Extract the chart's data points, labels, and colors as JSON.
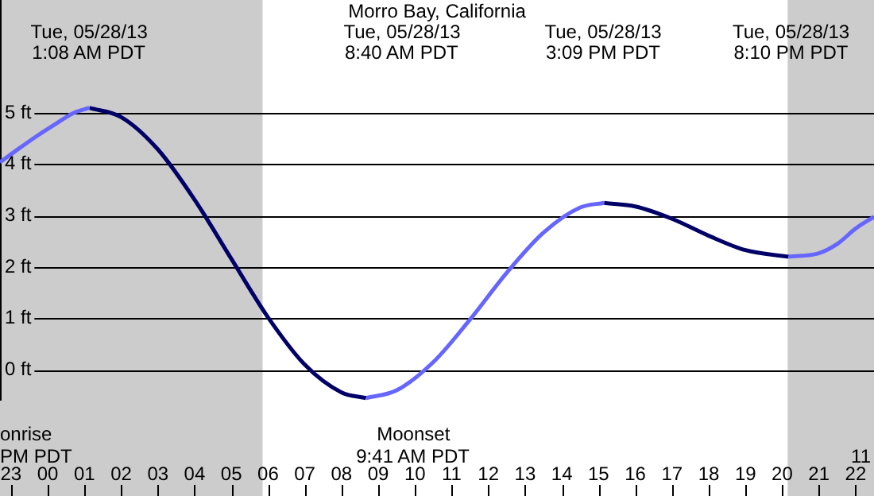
{
  "chart_data": {
    "type": "line",
    "title": "Morro Bay, California",
    "xlim": [
      "--05-27T22:42",
      "--05-28T22:30"
    ],
    "ylim": [
      -0.6,
      7.2
    ],
    "xticks": [
      {
        "value": "--05-27T23:00",
        "label": "23"
      },
      {
        "value": "--05-28T00:00",
        "label": "00"
      },
      {
        "value": "--05-28T01:00",
        "label": "01"
      },
      {
        "value": "--05-28T02:00",
        "label": "02"
      },
      {
        "value": "--05-28T03:00",
        "label": "03"
      },
      {
        "value": "--05-28T04:00",
        "label": "04"
      },
      {
        "value": "--05-28T05:00",
        "label": "05"
      },
      {
        "value": "--05-28T06:00",
        "label": "06"
      },
      {
        "value": "--05-28T07:00",
        "label": "07"
      },
      {
        "value": "--05-28T08:00",
        "label": "08"
      },
      {
        "value": "--05-28T09:00",
        "label": "09"
      },
      {
        "value": "--05-28T10:00",
        "label": "10"
      },
      {
        "value": "--05-28T11:00",
        "label": "11"
      },
      {
        "value": "--05-28T12:00",
        "label": "12"
      },
      {
        "value": "--05-28T13:00",
        "label": "13"
      },
      {
        "value": "--05-28T14:00",
        "label": "14"
      },
      {
        "value": "--05-28T15:00",
        "label": "15"
      },
      {
        "value": "--05-28T16:00",
        "label": "16"
      },
      {
        "value": "--05-28T17:00",
        "label": "17"
      },
      {
        "value": "--05-28T18:00",
        "label": "18"
      },
      {
        "value": "--05-28T19:00",
        "label": "19"
      },
      {
        "value": "--05-28T20:00",
        "label": "20"
      },
      {
        "value": "--05-28T21:00",
        "label": "21"
      },
      {
        "value": "--05-28T22:00",
        "label": "22"
      }
    ],
    "yticks": [
      {
        "value": 0,
        "label": "0 ft"
      },
      {
        "value": 1,
        "label": "1 ft"
      },
      {
        "value": 2,
        "label": "2 ft"
      },
      {
        "value": 3,
        "label": "3 ft"
      },
      {
        "value": 4,
        "label": "4 ft"
      },
      {
        "value": 5,
        "label": "5 ft"
      }
    ],
    "grid": "y",
    "legend": false,
    "marker": "none",
    "series": [
      {
        "color": "#6666ff",
        "x": [
          "--05-27T22:42",
          "--05-27T23:12",
          "--05-27T23:42",
          "--05-28T00:12",
          "--05-28T00:42",
          "--05-28T01:08"
        ],
        "values": [
          4.04,
          4.3,
          4.55,
          4.78,
          5.0,
          5.1
        ]
      },
      {
        "color": "#000066",
        "x": [
          "--05-28T01:08",
          "--05-28T02:00",
          "--05-28T03:00",
          "--05-28T04:00",
          "--05-28T05:00",
          "--05-28T06:00",
          "--05-28T07:00",
          "--05-28T08:00",
          "--05-28T08:40"
        ],
        "values": [
          5.1,
          4.92,
          4.29,
          3.31,
          2.16,
          1.02,
          0.1,
          -0.44,
          -0.55
        ]
      },
      {
        "color": "#6666ff",
        "x": [
          "--05-28T08:40",
          "--05-28T09:30",
          "--05-28T10:30",
          "--05-28T11:30",
          "--05-28T12:30",
          "--05-28T13:30",
          "--05-28T14:30",
          "--05-28T15:09"
        ],
        "values": [
          -0.55,
          -0.4,
          0.15,
          0.98,
          1.89,
          2.67,
          3.16,
          3.25
        ]
      },
      {
        "color": "#000066",
        "x": [
          "--05-28T15:09",
          "--05-28T16:00",
          "--05-28T17:00",
          "--05-28T18:00",
          "--05-28T19:00",
          "--05-28T20:10"
        ],
        "values": [
          3.25,
          3.18,
          2.94,
          2.61,
          2.33,
          2.2
        ]
      },
      {
        "color": "#6666ff",
        "x": [
          "--05-28T20:10",
          "--05-28T21:00",
          "--05-28T21:30",
          "--05-28T22:00",
          "--05-28T22:30"
        ],
        "values": [
          2.2,
          2.27,
          2.45,
          2.75,
          2.98
        ]
      }
    ],
    "bands": [
      {
        "axis": "x",
        "from": "--05-27T22:42",
        "to": "--05-28T05:51",
        "color": "#cccccc"
      },
      {
        "axis": "x",
        "from": "--05-28T20:09",
        "to": "--05-28T22:30",
        "color": "#cccccc"
      }
    ],
    "annotations": [
      "Tue, 05/28/13\n1:08 AM PDT",
      "Tue, 05/28/13\n8:40 AM PDT",
      "Tue, 05/28/13\n3:09 PM PDT",
      "Tue, 05/28/13\n8:10 PM PDT",
      "onrise\nPM PDT",
      "Moonset\n9:41 AM PDT",
      "11"
    ]
  }
}
